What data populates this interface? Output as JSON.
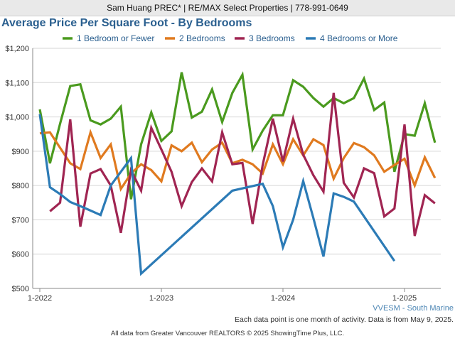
{
  "header": {
    "agent_line": "Sam Huang PREC* | RE/MAX Select Properties | 778-991-0649"
  },
  "footer": {
    "region": "VVESM - South Marine",
    "note": "Each data point is one month of activity. Data is from May 9, 2025.",
    "copyright": "All data from Greater Vancouver REALTORS © 2025 ShowingTime Plus, LLC."
  },
  "chart_data": {
    "type": "line",
    "title": "Average Price Per Square Foot - By Bedrooms",
    "xlabel": "",
    "ylabel": "",
    "ylim": [
      500,
      1200
    ],
    "yticks": [
      500,
      600,
      700,
      800,
      900,
      1000,
      1100,
      1200
    ],
    "ytick_labels": [
      "$500",
      "$600",
      "$700",
      "$800",
      "$900",
      "$1,000",
      "$1,100",
      "$1,200"
    ],
    "xticks": [
      "1-2022",
      "1-2023",
      "1-2024",
      "1-2025"
    ],
    "x_start": "2022-01",
    "x_end": "2025-04",
    "grid": true,
    "legend_position": "top",
    "series": [
      {
        "name": "1 Bedroom or Fewer",
        "color": "#4a9a1e",
        "values": [
          1022,
          865,
          980,
          1090,
          1095,
          990,
          978,
          995,
          1030,
          760,
          920,
          1013,
          930,
          958,
          1130,
          998,
          1015,
          1080,
          985,
          1070,
          1123,
          905,
          960,
          1005,
          1005,
          1107,
          1088,
          1055,
          1030,
          1055,
          1040,
          1055,
          1112,
          1020,
          1042,
          840,
          950,
          945,
          1040,
          925
        ]
      },
      {
        "name": "2 Bedrooms",
        "color": "#e07a1f",
        "values": [
          952,
          955,
          910,
          865,
          848,
          955,
          880,
          920,
          790,
          835,
          862,
          845,
          812,
          917,
          900,
          925,
          868,
          905,
          925,
          865,
          875,
          862,
          835,
          920,
          862,
          935,
          888,
          935,
          918,
          820,
          880,
          924,
          912,
          888,
          840,
          860,
          878,
          800,
          882,
          822
        ]
      },
      {
        "name": "3 Bedrooms",
        "color": "#a02552",
        "values": [
          null,
          725,
          750,
          993,
          680,
          835,
          848,
          800,
          662,
          845,
          785,
          968,
          905,
          840,
          740,
          810,
          850,
          812,
          955,
          862,
          866,
          688,
          860,
          995,
          870,
          995,
          890,
          830,
          782,
          1070,
          808,
          765,
          850,
          836,
          710,
          733,
          978,
          653,
          772,
          748
        ]
      },
      {
        "name": "4 Bedrooms or More",
        "color": "#2c7bb6",
        "values": [
          1008,
          795,
          775,
          752,
          740,
          727,
          714,
          800,
          840,
          880,
          543,
          null,
          null,
          null,
          null,
          null,
          null,
          null,
          null,
          785,
          null,
          null,
          805,
          740,
          620,
          700,
          813,
          705,
          593,
          777,
          767,
          753,
          null,
          null,
          null,
          580,
          null,
          null,
          null,
          null
        ]
      }
    ]
  }
}
